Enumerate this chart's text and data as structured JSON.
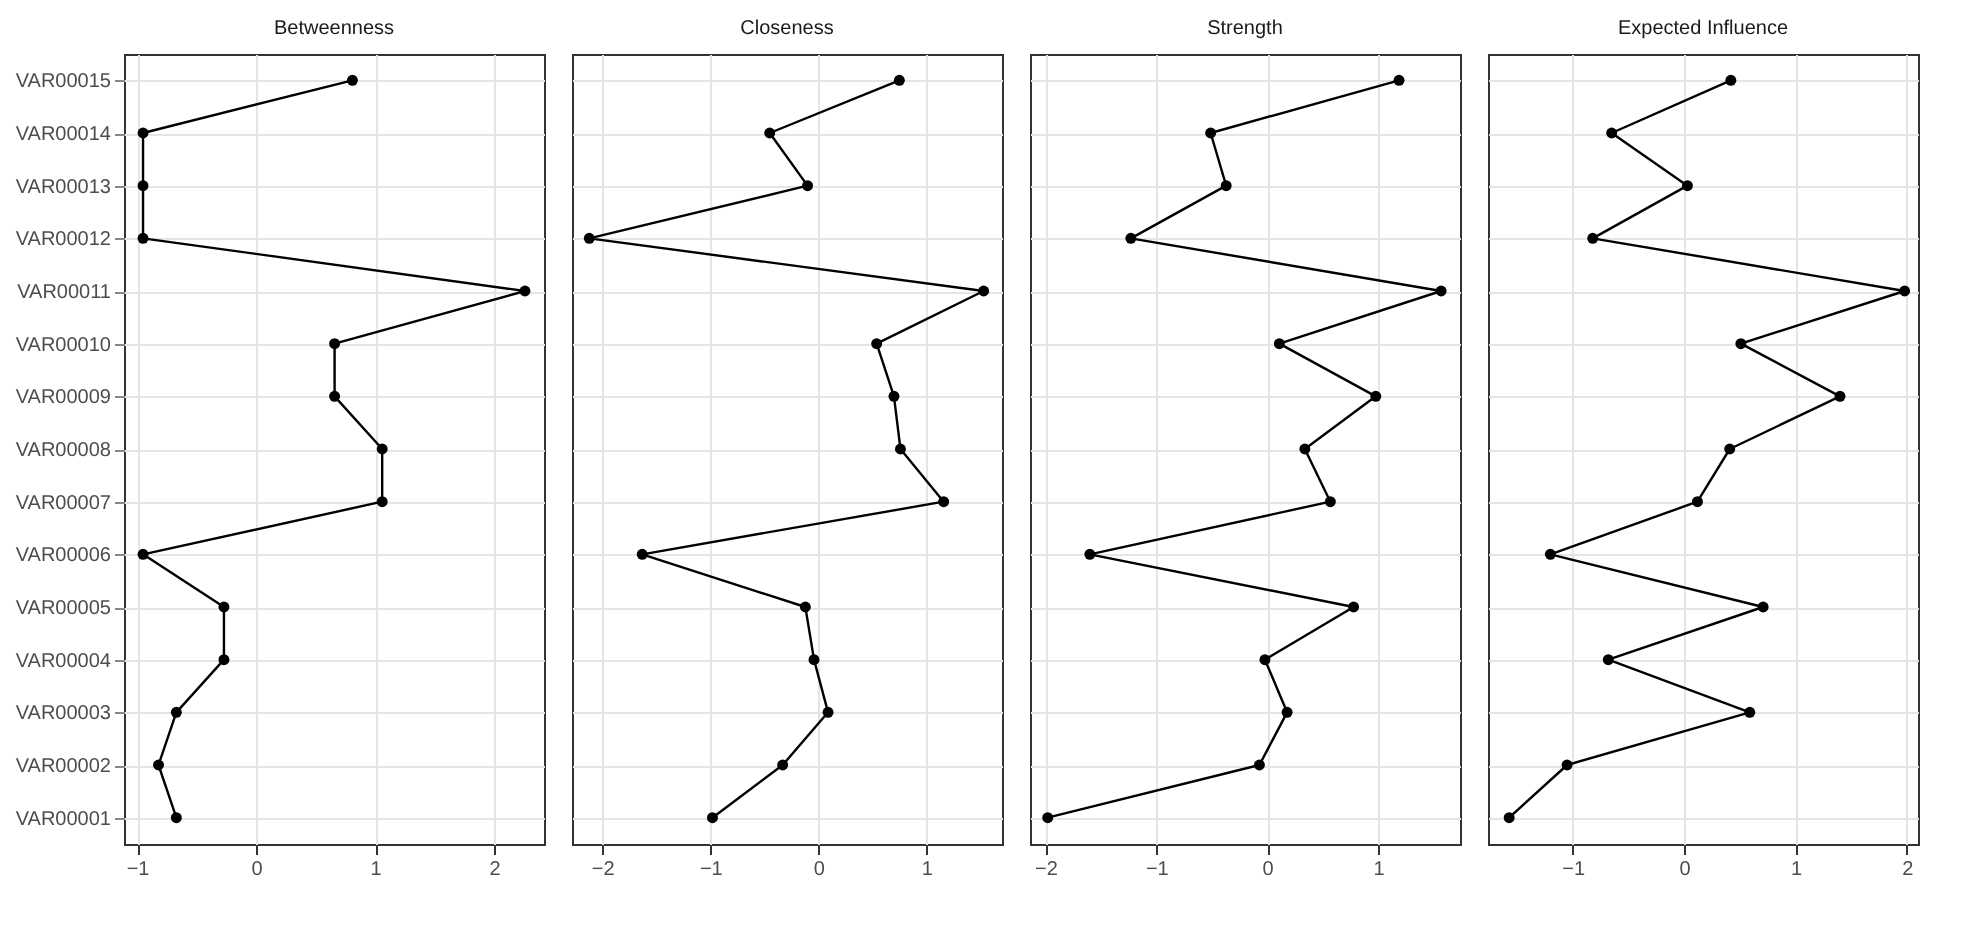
{
  "chart_data": [
    {
      "type": "line",
      "title": "Betweenness",
      "orientation": "horizontal",
      "marker": "circle",
      "grid": true,
      "categories": [
        "VAR00015",
        "VAR00014",
        "VAR00013",
        "VAR00012",
        "VAR00011",
        "VAR00010",
        "VAR00009",
        "VAR00008",
        "VAR00007",
        "VAR00006",
        "VAR00005",
        "VAR00004",
        "VAR00003",
        "VAR00002",
        "VAR00001"
      ],
      "series": [
        {
          "color": "#000000",
          "values": [
            0.81,
            -0.95,
            -0.95,
            -0.95,
            2.26,
            0.66,
            0.66,
            1.06,
            1.06,
            -0.95,
            -0.27,
            -0.27,
            -0.67,
            -0.82,
            -0.67
          ]
        }
      ],
      "xlim": [
        -1.11,
        2.42
      ],
      "xticks": [
        -1,
        0,
        1,
        2
      ]
    },
    {
      "type": "line",
      "title": "Closeness",
      "orientation": "horizontal",
      "marker": "circle",
      "grid": true,
      "tick_labels": "x",
      "categories": [
        "VAR00015",
        "VAR00014",
        "VAR00013",
        "VAR00012",
        "VAR00011",
        "VAR00010",
        "VAR00009",
        "VAR00008",
        "VAR00007",
        "VAR00006",
        "VAR00005",
        "VAR00004",
        "VAR00003",
        "VAR00002",
        "VAR00001"
      ],
      "series": [
        {
          "color": "#000000",
          "values": [
            0.75,
            -0.45,
            -0.1,
            -2.12,
            1.53,
            0.54,
            0.7,
            0.76,
            1.16,
            -1.63,
            -0.12,
            -0.04,
            0.09,
            -0.33,
            -0.98
          ]
        }
      ],
      "xlim": [
        -2.28,
        1.7
      ],
      "xticks": [
        -2,
        -1,
        0,
        1
      ]
    },
    {
      "type": "line",
      "title": "Strength",
      "orientation": "horizontal",
      "marker": "circle",
      "grid": true,
      "tick_labels": "x",
      "categories": [
        "VAR00015",
        "VAR00014",
        "VAR00013",
        "VAR00012",
        "VAR00011",
        "VAR00010",
        "VAR00009",
        "VAR00008",
        "VAR00007",
        "VAR00006",
        "VAR00005",
        "VAR00004",
        "VAR00003",
        "VAR00002",
        "VAR00001"
      ],
      "series": [
        {
          "color": "#000000",
          "values": [
            1.19,
            -0.51,
            -0.37,
            -1.23,
            1.57,
            0.11,
            0.98,
            0.34,
            0.57,
            -1.6,
            0.78,
            -0.02,
            0.18,
            -0.07,
            -1.98
          ]
        }
      ],
      "xlim": [
        -2.14,
        1.74
      ],
      "xticks": [
        -2,
        -1,
        0,
        1
      ]
    },
    {
      "type": "line",
      "title": "Expected Influence",
      "orientation": "horizontal",
      "marker": "circle",
      "grid": true,
      "tick_labels": "x",
      "categories": [
        "VAR00015",
        "VAR00014",
        "VAR00013",
        "VAR00012",
        "VAR00011",
        "VAR00010",
        "VAR00009",
        "VAR00008",
        "VAR00007",
        "VAR00006",
        "VAR00005",
        "VAR00004",
        "VAR00003",
        "VAR00002",
        "VAR00001"
      ],
      "series": [
        {
          "color": "#000000",
          "values": [
            0.42,
            -0.65,
            0.03,
            -0.82,
            1.98,
            0.51,
            1.4,
            0.41,
            0.12,
            -1.2,
            0.71,
            -0.68,
            0.59,
            -1.05,
            -1.57
          ]
        }
      ],
      "xlim": [
        -1.76,
        2.1
      ],
      "xticks": [
        -1,
        0,
        1,
        2
      ]
    }
  ]
}
